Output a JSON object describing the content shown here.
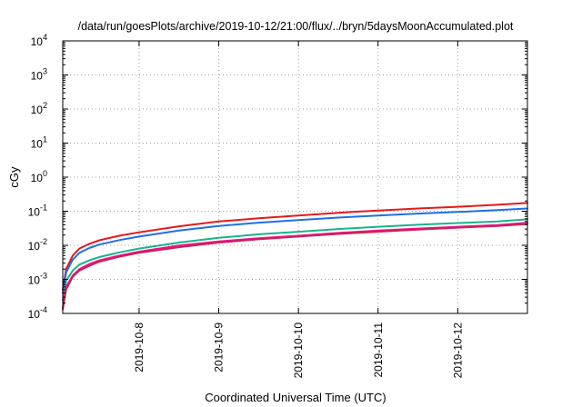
{
  "chart_data": {
    "type": "line",
    "title": "/data/run/goesPlots/archive/2019-10-12/21:00/flux/../bryn/5daysMoonAccumulated.plot",
    "xlabel": "Coordinated Universal Time (UTC)",
    "ylabel": "cGy",
    "yscale": "log",
    "grid": true,
    "xlim": [
      "2019-10-07 01:00",
      "2019-10-12 21:00"
    ],
    "ylim": [
      0.0001,
      10000
    ],
    "x_ticks": [
      "2019-10-8",
      "2019-10-9",
      "2019-10-10",
      "2019-10-11",
      "2019-10-12"
    ],
    "y_ticks": [
      {
        "value": 0.0001,
        "base": "10",
        "exp": "-4"
      },
      {
        "value": 0.001,
        "base": "10",
        "exp": "-3"
      },
      {
        "value": 0.01,
        "base": "10",
        "exp": "-2"
      },
      {
        "value": 0.1,
        "base": "10",
        "exp": "-1"
      },
      {
        "value": 1,
        "base": "10",
        "exp": "0"
      },
      {
        "value": 10,
        "base": "10",
        "exp": "1"
      },
      {
        "value": 100,
        "base": "10",
        "exp": "2"
      },
      {
        "value": 1000,
        "base": "10",
        "exp": "3"
      },
      {
        "value": 10000,
        "base": "10",
        "exp": "4"
      }
    ],
    "x": [
      "2019-10-07 01:00",
      "2019-10-07 02:00",
      "2019-10-07 04:00",
      "2019-10-07 06:00",
      "2019-10-07 09:00",
      "2019-10-07 12:00",
      "2019-10-07 18:00",
      "2019-10-08 00:00",
      "2019-10-08 12:00",
      "2019-10-09 00:00",
      "2019-10-09 12:00",
      "2019-10-10 00:00",
      "2019-10-10 12:00",
      "2019-10-11 00:00",
      "2019-10-11 12:00",
      "2019-10-12 00:00",
      "2019-10-12 12:00",
      "2019-10-12 21:00"
    ],
    "series": [
      {
        "color": "#e41a1c",
        "values": [
          0.0005,
          0.002,
          0.005,
          0.008,
          0.011,
          0.014,
          0.019,
          0.024,
          0.036,
          0.05,
          0.062,
          0.075,
          0.09,
          0.105,
          0.12,
          0.135,
          0.155,
          0.175
        ]
      },
      {
        "color": "#1f6fe8",
        "values": [
          0.0004,
          0.0016,
          0.0038,
          0.006,
          0.0083,
          0.0105,
          0.0142,
          0.018,
          0.027,
          0.037,
          0.046,
          0.055,
          0.065,
          0.075,
          0.085,
          0.095,
          0.108,
          0.12
        ]
      },
      {
        "color": "#1ab38a",
        "values": [
          0.00025,
          0.0009,
          0.0018,
          0.0027,
          0.0036,
          0.0045,
          0.0062,
          0.008,
          0.012,
          0.0165,
          0.021,
          0.025,
          0.03,
          0.035,
          0.04,
          0.045,
          0.05,
          0.058
        ]
      },
      {
        "color": "#e8148f",
        "values": [
          0.00015,
          0.0006,
          0.0013,
          0.002,
          0.0028,
          0.0036,
          0.005,
          0.0065,
          0.0098,
          0.013,
          0.016,
          0.019,
          0.023,
          0.027,
          0.031,
          0.035,
          0.039,
          0.046
        ]
      },
      {
        "color": "#cc2255",
        "values": [
          0.00013,
          0.0005,
          0.0012,
          0.0018,
          0.0025,
          0.0033,
          0.0046,
          0.006,
          0.0088,
          0.012,
          0.015,
          0.018,
          0.0215,
          0.025,
          0.029,
          0.033,
          0.037,
          0.042
        ]
      }
    ]
  }
}
